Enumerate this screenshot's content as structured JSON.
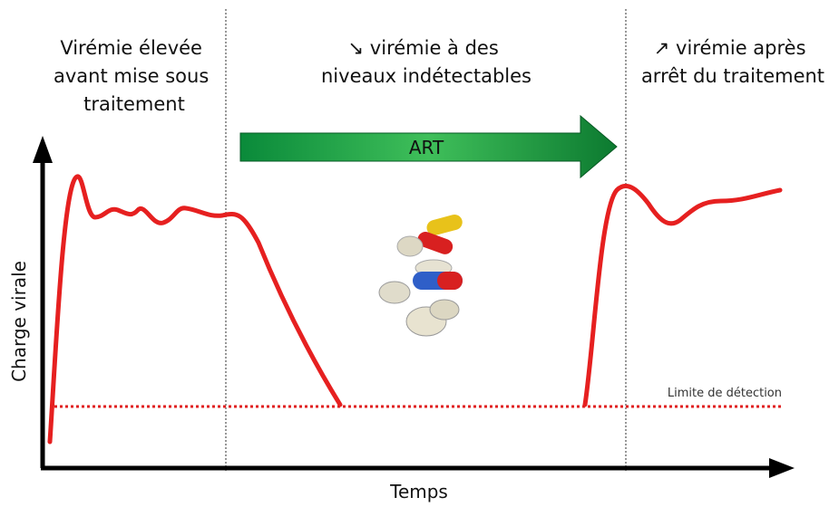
{
  "phases": [
    {
      "lines": [
        "Virémie élevée",
        "avant mise sous",
        "traitement"
      ]
    },
    {
      "lines": [
        "↘ virémie à des",
        "niveaux indétectables"
      ]
    },
    {
      "lines": [
        "↗ virémie après",
        "arrêt du traitement"
      ]
    }
  ],
  "treatment_label": "ART",
  "y_axis_label": "Charge virale",
  "x_axis_label": "Temps",
  "threshold_label": "Limite de détection"
}
